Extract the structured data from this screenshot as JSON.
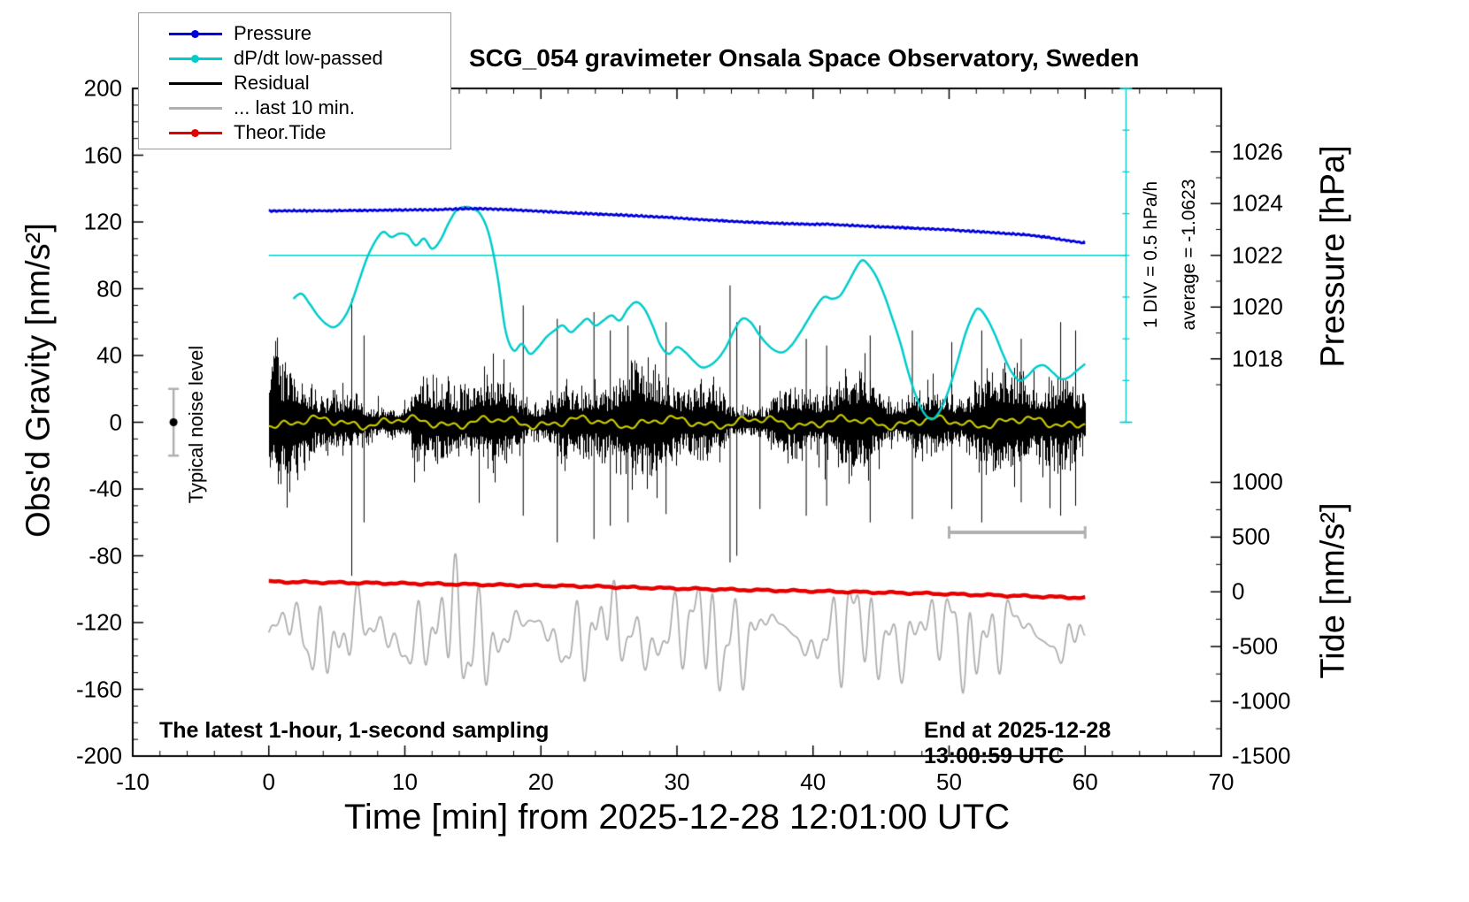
{
  "chart_data": {
    "type": "line",
    "title": "SCG_054 gravimeter Onsala Space Observatory, Sweden",
    "xlabel": "Time [min] from 2025-12-28 12:01:00 UTC",
    "ylabel_left": "Obs'd Gravity [nm/s²]",
    "ylabel_right_top": "Pressure [hPa]",
    "ylabel_right_bottom": "Tide [nm/s²]",
    "x_range": [
      -10,
      70
    ],
    "y_left_range": [
      -200,
      200
    ],
    "x_major_ticks": [
      -10,
      0,
      10,
      20,
      30,
      40,
      50,
      60,
      70
    ],
    "x_minor_step": 2,
    "y_major_ticks": [
      -200,
      -160,
      -120,
      -80,
      -40,
      0,
      40,
      80,
      120,
      160,
      200
    ],
    "y_minor_step": 10,
    "grid": false,
    "legend_position": "top-left",
    "pressure_axis": {
      "ticks": [
        1026,
        1024,
        1022,
        1020,
        1018
      ],
      "minor_ticks": [
        1027,
        1025,
        1023,
        1021,
        1019,
        1017
      ],
      "gravity_at_1022": 100,
      "gravity_per_hpa": 15.5
    },
    "tide_axis": {
      "ticks": [
        1000,
        500,
        0,
        -500,
        -1000,
        -1500
      ],
      "minor_ticks": [
        750,
        250,
        -250,
        -750,
        -1250
      ],
      "gravity_at_zero": -101.6,
      "gravity_per_unit": 0.0656
    },
    "legend": [
      {
        "label": "Pressure",
        "color": "#0000dd",
        "marker": true,
        "lw": 3
      },
      {
        "label": "dP/dt low-passed",
        "color": "#00cccc",
        "marker": true,
        "lw": 3
      },
      {
        "label": "Residual",
        "color": "#000000",
        "marker": false,
        "lw": 3
      },
      {
        "label": "... last 10 min.",
        "color": "#b0b0b0",
        "marker": false,
        "lw": 3
      },
      {
        "label": "Theor.Tide",
        "color": "#e60000",
        "marker": true,
        "lw": 3
      }
    ],
    "series": {
      "pressure": {
        "name": "Pressure",
        "color": "#0000dd",
        "lw": 2.8,
        "seed": 11,
        "keypoints": [
          [
            0,
            126.6
          ],
          [
            2,
            126.7
          ],
          [
            4,
            126.7
          ],
          [
            6,
            126.9
          ],
          [
            8,
            127.0
          ],
          [
            10,
            127.2
          ],
          [
            12,
            127.3
          ],
          [
            14,
            127.8
          ],
          [
            15.5,
            128.0
          ],
          [
            17,
            127.6
          ],
          [
            18.5,
            127.0
          ],
          [
            20,
            126.4
          ],
          [
            22,
            125.5
          ],
          [
            24,
            124.8
          ],
          [
            26,
            124.1
          ],
          [
            28,
            123.3
          ],
          [
            30,
            122.4
          ],
          [
            31,
            121.8
          ],
          [
            32,
            121.3
          ],
          [
            33,
            120.9
          ],
          [
            34,
            120.4
          ],
          [
            35,
            120.0
          ],
          [
            36,
            119.7
          ],
          [
            37,
            119.3
          ],
          [
            38,
            119.0
          ],
          [
            39,
            118.8
          ],
          [
            40,
            118.6
          ],
          [
            41,
            118.7
          ],
          [
            42,
            118.2
          ],
          [
            43,
            117.8
          ],
          [
            44,
            117.4
          ],
          [
            45,
            117.1
          ],
          [
            46,
            116.8
          ],
          [
            47,
            116.4
          ],
          [
            48,
            116.0
          ],
          [
            49,
            115.7
          ],
          [
            50,
            115.3
          ],
          [
            51,
            114.8
          ],
          [
            52,
            114.3
          ],
          [
            53,
            113.7
          ],
          [
            54,
            113.2
          ],
          [
            55,
            112.7
          ],
          [
            56,
            112.0
          ],
          [
            57,
            111.0
          ],
          [
            58,
            109.8
          ],
          [
            59,
            108.5
          ],
          [
            60,
            107.3
          ]
        ]
      },
      "dpdt": {
        "name": "dP/dt low-passed",
        "color": "#00cccc",
        "lw": 2.5,
        "keypoints": [
          [
            1.8,
            74
          ],
          [
            2.4,
            77
          ],
          [
            3.0,
            71
          ],
          [
            3.6,
            64
          ],
          [
            4.2,
            59
          ],
          [
            4.8,
            57
          ],
          [
            5.4,
            61
          ],
          [
            6.0,
            70
          ],
          [
            6.6,
            84
          ],
          [
            7.2,
            98
          ],
          [
            7.8,
            108
          ],
          [
            8.4,
            114
          ],
          [
            9.0,
            111
          ],
          [
            9.6,
            113
          ],
          [
            10.2,
            112
          ],
          [
            10.8,
            106
          ],
          [
            11.4,
            110
          ],
          [
            12.0,
            104
          ],
          [
            12.6,
            109
          ],
          [
            13.2,
            119
          ],
          [
            13.8,
            127
          ],
          [
            14.4,
            129
          ],
          [
            15.0,
            128
          ],
          [
            15.6,
            124
          ],
          [
            16.2,
            112
          ],
          [
            16.8,
            88
          ],
          [
            17.4,
            55
          ],
          [
            18.0,
            43
          ],
          [
            18.6,
            47
          ],
          [
            19.2,
            41
          ],
          [
            19.8,
            45
          ],
          [
            20.4,
            51
          ],
          [
            21.0,
            55
          ],
          [
            21.6,
            58
          ],
          [
            22.2,
            54
          ],
          [
            22.8,
            58
          ],
          [
            23.4,
            62
          ],
          [
            24.0,
            58
          ],
          [
            24.6,
            61
          ],
          [
            25.2,
            64
          ],
          [
            25.8,
            61
          ],
          [
            26.4,
            68
          ],
          [
            27.0,
            72
          ],
          [
            27.6,
            68
          ],
          [
            28.2,
            58
          ],
          [
            28.8,
            46
          ],
          [
            29.4,
            41
          ],
          [
            30.0,
            45
          ],
          [
            30.6,
            42
          ],
          [
            31.2,
            37
          ],
          [
            31.8,
            33
          ],
          [
            32.4,
            34
          ],
          [
            33.0,
            38
          ],
          [
            33.6,
            45
          ],
          [
            34.2,
            55
          ],
          [
            34.8,
            62
          ],
          [
            35.4,
            60
          ],
          [
            36.0,
            53
          ],
          [
            36.6,
            47
          ],
          [
            37.2,
            43
          ],
          [
            37.8,
            42
          ],
          [
            38.4,
            46
          ],
          [
            39.0,
            53
          ],
          [
            39.6,
            61
          ],
          [
            40.2,
            69
          ],
          [
            40.8,
            75
          ],
          [
            41.4,
            74
          ],
          [
            42.0,
            76
          ],
          [
            42.6,
            84
          ],
          [
            43.2,
            93
          ],
          [
            43.6,
            97
          ],
          [
            44.0,
            95
          ],
          [
            44.6,
            88
          ],
          [
            45.2,
            77
          ],
          [
            45.8,
            63
          ],
          [
            46.4,
            48
          ],
          [
            47.0,
            30
          ],
          [
            47.6,
            15
          ],
          [
            48.2,
            5
          ],
          [
            48.8,
            2
          ],
          [
            49.4,
            8
          ],
          [
            50.0,
            20
          ],
          [
            50.6,
            36
          ],
          [
            51.2,
            53
          ],
          [
            51.8,
            65
          ],
          [
            52.2,
            68
          ],
          [
            52.8,
            62
          ],
          [
            53.4,
            52
          ],
          [
            54.0,
            40
          ],
          [
            54.6,
            30
          ],
          [
            55.2,
            25
          ],
          [
            55.8,
            28
          ],
          [
            56.4,
            33
          ],
          [
            57.0,
            34
          ],
          [
            57.6,
            30
          ],
          [
            58.2,
            26
          ],
          [
            58.8,
            27
          ],
          [
            59.4,
            31
          ],
          [
            60.0,
            35
          ]
        ]
      },
      "residual": {
        "name": "Residual",
        "color": "#000000",
        "seed": 7,
        "x_start": 0,
        "x_end": 60,
        "base_sigma": 13,
        "spikes": [
          [
            6.1,
            74,
            -92
          ],
          [
            7.0,
            52,
            -60
          ],
          [
            18.7,
            70,
            -56
          ],
          [
            21.2,
            62,
            -72
          ],
          [
            23.9,
            66,
            -70
          ],
          [
            25.1,
            55,
            -62
          ],
          [
            26.4,
            58,
            -60
          ],
          [
            29.2,
            60,
            -55
          ],
          [
            33.9,
            82,
            -84
          ],
          [
            34.4,
            60,
            -80
          ],
          [
            36.1,
            58,
            -52
          ],
          [
            39.5,
            50,
            -56
          ],
          [
            41.0,
            46,
            -50
          ],
          [
            44.2,
            52,
            -60
          ],
          [
            47.3,
            55,
            -58
          ],
          [
            50.2,
            48,
            -52
          ],
          [
            52.4,
            55,
            -60
          ],
          [
            55.3,
            50,
            -48
          ],
          [
            58.2,
            60,
            -56
          ],
          [
            59.3,
            55,
            -50
          ]
        ]
      },
      "residual_smooth": {
        "name": "Residual low-passed",
        "color": "#c8c800",
        "lw": 2.2,
        "baseline": 0,
        "seed": 5
      },
      "last10": {
        "name": "... last 10 min.",
        "color": "#b0b0b0",
        "lw": 1.8,
        "baseline": -127,
        "seed": 3,
        "x_start": 0,
        "x_end": 60,
        "clamp": [
          -190,
          -79
        ]
      },
      "tide": {
        "name": "Theor.Tide",
        "color": "#e60000",
        "lw": 4.5,
        "keypoints": [
          [
            0,
            -95.5
          ],
          [
            6,
            -96.2
          ],
          [
            12,
            -96.8
          ],
          [
            18,
            -97.6
          ],
          [
            24,
            -98.4
          ],
          [
            27,
            -99.0
          ],
          [
            30,
            -99.6
          ],
          [
            36,
            -100.6
          ],
          [
            42,
            -101.5
          ],
          [
            48,
            -102.5
          ],
          [
            54,
            -103.8
          ],
          [
            60,
            -105.2
          ]
        ]
      }
    },
    "reference": {
      "cyan_hline": {
        "g": 100,
        "x_start": 0,
        "x_end": 63,
        "color": "#00cccc"
      },
      "cyan_scalebar": {
        "x": 63,
        "g_start": 0,
        "g_end": 200,
        "tick_step_g": 25,
        "color": "#00cccc"
      },
      "gray_bar": {
        "g": -66,
        "x_start": 50,
        "x_end": 60,
        "color": "#b0b0b0"
      },
      "noise_marker": {
        "x": -7,
        "g": 0,
        "err": 20,
        "bar_color": "#b0b0b0",
        "dot_color": "#000000"
      }
    },
    "annotations": {
      "div_note": "1 DIV = 0.5 hPa/h",
      "avg_note": "average = -1.0623",
      "noise_label": "Typical noise level",
      "footer_left": "The latest 1-hour, 1-second sampling",
      "footer_right": "End at 2025-12-28 13:00:59 UTC"
    }
  }
}
